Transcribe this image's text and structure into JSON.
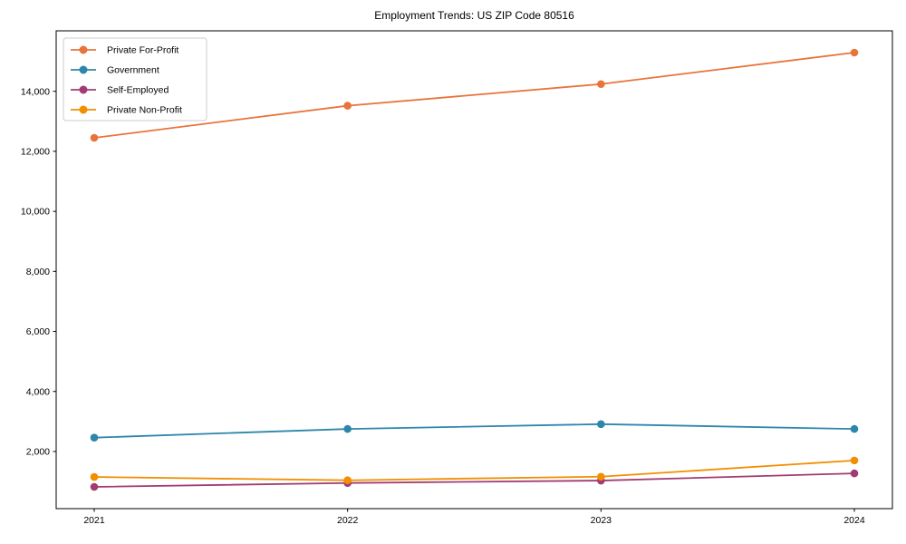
{
  "chart_data": {
    "type": "line",
    "title": "Employment Trends: US ZIP Code 80516",
    "x": [
      "2021",
      "2022",
      "2023",
      "2024"
    ],
    "series": [
      {
        "name": "Private For-Profit",
        "color": "#e8743b",
        "values": [
          12450,
          13520,
          14240,
          15290
        ]
      },
      {
        "name": "Government",
        "color": "#2e86ab",
        "values": [
          2460,
          2750,
          2910,
          2750
        ]
      },
      {
        "name": "Self-Employed",
        "color": "#a23b72",
        "values": [
          820,
          950,
          1030,
          1270
        ]
      },
      {
        "name": "Private Non-Profit",
        "color": "#f18f01",
        "values": [
          1150,
          1040,
          1160,
          1700
        ]
      }
    ],
    "yticks": [
      2000,
      4000,
      6000,
      8000,
      10000,
      12000,
      14000
    ],
    "ytick_labels": [
      "2,000",
      "4,000",
      "6,000",
      "8,000",
      "10,000",
      "12,000",
      "14,000"
    ],
    "ylim": [
      95,
      16015
    ],
    "xlabel": "",
    "ylabel": "",
    "grid": false,
    "legend_position": "upper-left",
    "axis_color": "#000000",
    "legend_border_color": "#cccccc",
    "legend_background": "#ffffff"
  }
}
